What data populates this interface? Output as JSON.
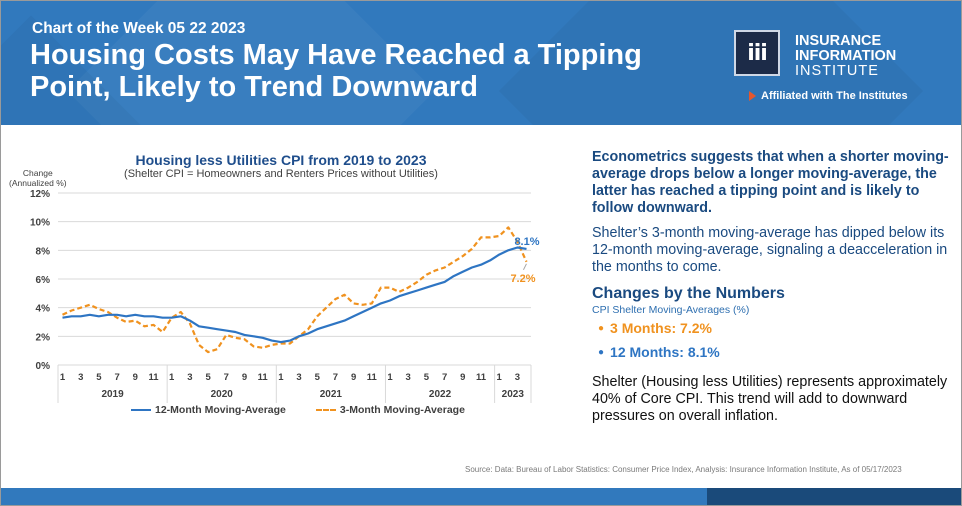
{
  "header": {
    "kicker": "Chart of the Week 05 22 2023",
    "title": "Housing Costs May Have Reached a Tipping Point, Likely to Trend Downward",
    "logo": {
      "mark": "iii",
      "line1": "INSURANCE",
      "line2": "INFORMATION",
      "line3": "INSTITUTE",
      "affiliation": "Affiliated with The Institutes",
      "icon": "play-triangle-icon"
    }
  },
  "colors": {
    "brand_blue": "#3179bd",
    "dark_blue": "#1a4a7a",
    "series_12m": "#2e75c3",
    "series_3m": "#f0921f",
    "text_navy": "#1a4a80"
  },
  "chart_data": {
    "type": "line",
    "title": "Housing less Utilities CPI from 2019 to 2023",
    "subtitle": "(Shelter CPI = Homeowners and Renters Prices without Utilities)",
    "ylabel": "Change (Annualized %)",
    "ylabel_lines": [
      "Change",
      "(Annualized %)"
    ],
    "xlabel": "",
    "ylim": [
      0,
      12
    ],
    "yticks": [
      "0%",
      "2%",
      "4%",
      "6%",
      "8%",
      "10%",
      "12%"
    ],
    "ytick_values": [
      0,
      2,
      4,
      6,
      8,
      10,
      12
    ],
    "grid": true,
    "legend_position": "bottom",
    "x_month_labels": [
      "1",
      "3",
      "5",
      "7",
      "9",
      "11",
      "1",
      "3",
      "5",
      "7",
      "9",
      "11",
      "1",
      "3",
      "5",
      "7",
      "9",
      "11",
      "1",
      "3",
      "5",
      "7",
      "9",
      "11",
      "1",
      "3"
    ],
    "x_month_label_index": [
      0,
      2,
      4,
      6,
      8,
      10,
      12,
      14,
      16,
      18,
      20,
      22,
      24,
      26,
      28,
      30,
      32,
      34,
      36,
      38,
      40,
      42,
      44,
      46,
      48,
      50
    ],
    "x_year_groups": [
      {
        "label": "2019",
        "start": 0,
        "count": 12
      },
      {
        "label": "2020",
        "start": 12,
        "count": 12
      },
      {
        "label": "2021",
        "start": 24,
        "count": 12
      },
      {
        "label": "2022",
        "start": 36,
        "count": 12
      },
      {
        "label": "2023",
        "start": 48,
        "count": 4
      }
    ],
    "series": [
      {
        "name": "12-Month Moving-Average",
        "style": "solid",
        "color": "#2e75c3",
        "values": [
          3.3,
          3.4,
          3.4,
          3.5,
          3.4,
          3.5,
          3.5,
          3.4,
          3.5,
          3.4,
          3.4,
          3.3,
          3.3,
          3.4,
          3.1,
          2.7,
          2.6,
          2.5,
          2.4,
          2.3,
          2.1,
          2.0,
          1.9,
          1.7,
          1.6,
          1.7,
          2.0,
          2.2,
          2.5,
          2.7,
          2.9,
          3.1,
          3.4,
          3.7,
          4.0,
          4.3,
          4.5,
          4.8,
          5.0,
          5.2,
          5.4,
          5.6,
          5.8,
          6.2,
          6.5,
          6.8,
          7.0,
          7.3,
          7.7,
          8.0,
          8.2,
          8.1
        ],
        "end_label": "8.1%"
      },
      {
        "name": "3-Month Moving-Average",
        "style": "dashed",
        "color": "#f0921f",
        "values": [
          3.5,
          3.8,
          4.0,
          4.2,
          3.9,
          3.7,
          3.3,
          3.0,
          3.1,
          2.7,
          2.8,
          2.3,
          3.3,
          3.7,
          2.9,
          1.4,
          0.9,
          1.1,
          2.1,
          1.9,
          1.8,
          1.3,
          1.2,
          1.4,
          1.5,
          1.5,
          2.0,
          2.5,
          3.4,
          4.0,
          4.6,
          4.9,
          4.3,
          4.2,
          4.3,
          5.4,
          5.4,
          5.1,
          5.4,
          5.8,
          6.3,
          6.6,
          6.8,
          7.2,
          7.6,
          8.1,
          8.9,
          8.9,
          9.0,
          9.6,
          8.6,
          7.2
        ],
        "end_label": "7.2%"
      }
    ]
  },
  "right_panel": {
    "lead": "Econometrics suggests that when a shorter moving-average drops below a longer moving-average, the latter has reached a tipping point and is likely to follow downward.",
    "para": "Shelter’s 3-month moving-average has dipped below its 12-month moving-average, signaling a deacceleration in the months to come.",
    "heading": "Changes by the Numbers",
    "subheading": "CPI Shelter Moving-Averages (%)",
    "bullets": [
      {
        "label": "3 Months: 7.2%",
        "color": "#f0921f"
      },
      {
        "label": "12 Months: 8.1%",
        "color": "#2e75c3"
      }
    ],
    "closing": "Shelter (Housing less Utilities) represents approximately 40% of Core CPI. This trend will add to downward pressures on overall inflation."
  },
  "footer": {
    "source": "Source: Data: Bureau of Labor Statistics: Consumer Price Index, Analysis: Insurance Information Institute, As of 05/17/2023"
  }
}
